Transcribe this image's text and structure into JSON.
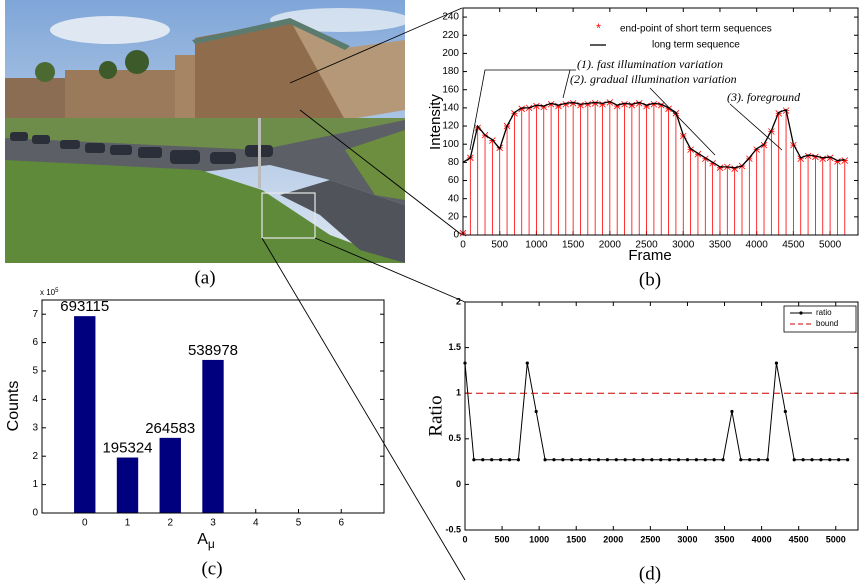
{
  "photo": {
    "caption": "(a)"
  },
  "chart_data": [
    {
      "type": "line",
      "caption": "(b)",
      "xlabel": "Frame",
      "ylabel": "Intensity",
      "x": [
        0,
        100,
        200,
        300,
        400,
        500,
        600,
        700,
        800,
        900,
        1000,
        1100,
        1200,
        1300,
        1400,
        1500,
        1600,
        1700,
        1800,
        1900,
        2000,
        2100,
        2200,
        2300,
        2400,
        2500,
        2600,
        2700,
        2800,
        2900,
        3000,
        3100,
        3200,
        3300,
        3400,
        3500,
        3600,
        3700,
        3800,
        3900,
        4000,
        4100,
        4200,
        4300,
        4400,
        4500,
        4600,
        4700,
        4800,
        4900,
        5000,
        5100,
        5200
      ],
      "series": [
        {
          "name": "end-point of short term sequences",
          "color": "#ff0000",
          "style": "stem",
          "values": [
            2,
            85,
            118,
            110,
            104,
            96,
            120,
            134,
            139,
            140,
            142,
            141,
            144,
            142,
            144,
            145,
            143,
            144,
            145,
            144,
            146,
            142,
            144,
            143,
            145,
            142,
            144,
            143,
            139,
            134,
            109,
            94,
            89,
            84,
            79,
            74,
            75,
            73,
            76,
            84,
            94,
            99,
            114,
            134,
            137,
            99,
            84,
            87,
            86,
            84,
            85,
            81,
            82
          ]
        },
        {
          "name": "long term sequence",
          "color": "#000000",
          "style": "line",
          "values": [
            80,
            85,
            120,
            110,
            105,
            95,
            120,
            135,
            140,
            140,
            143,
            142,
            145,
            143,
            145,
            146,
            144,
            145,
            146,
            145,
            147,
            143,
            145,
            144,
            146,
            143,
            145,
            144,
            140,
            135,
            110,
            95,
            90,
            85,
            80,
            75,
            75,
            74,
            76,
            85,
            95,
            100,
            115,
            135,
            138,
            100,
            85,
            88,
            87,
            85,
            86,
            82,
            83
          ]
        }
      ],
      "xlim": [
        0,
        5380
      ],
      "ylim": [
        0,
        250
      ],
      "xticks": [
        0,
        500,
        1000,
        1500,
        2000,
        2500,
        3000,
        3500,
        4000,
        4500,
        5000
      ],
      "yticks": [
        0,
        20,
        40,
        60,
        80,
        100,
        120,
        140,
        160,
        180,
        200,
        220,
        240
      ],
      "annotations": [
        "(1). fast illumination variation",
        "(2). gradual illumination variation",
        "(3). foreground"
      ]
    },
    {
      "type": "bar",
      "caption": "(c)",
      "xlabel": "A",
      "xlabel_subscript": "μ",
      "ylabel": "Counts",
      "y_multiplier": "x 10",
      "y_multiplier_exponent": "5",
      "color": "#00007f",
      "categories": [
        "0",
        "1",
        "2",
        "3",
        "4",
        "5",
        "6"
      ],
      "values": [
        693115,
        195324,
        264583,
        538978,
        null,
        null,
        null
      ],
      "ylim": [
        0,
        750000
      ],
      "yticks": [
        0,
        {
          "value": 100000,
          "label": "1"
        },
        {
          "value": 200000,
          "label": "2"
        },
        {
          "value": 300000,
          "label": "3"
        },
        {
          "value": 400000,
          "label": "4"
        },
        {
          "value": 500000,
          "label": "5"
        },
        {
          "value": 600000,
          "label": "6"
        },
        {
          "value": 700000,
          "label": "7"
        }
      ]
    },
    {
      "type": "line",
      "caption": "(d)",
      "ylabel": "Ratio",
      "x": [
        0,
        120,
        240,
        360,
        480,
        600,
        720,
        840,
        960,
        1080,
        1200,
        1320,
        1440,
        1560,
        1680,
        1800,
        1920,
        2040,
        2160,
        2280,
        2400,
        2520,
        2640,
        2760,
        2880,
        3000,
        3120,
        3240,
        3360,
        3480,
        3600,
        3720,
        3840,
        3960,
        4080,
        4200,
        4320,
        4440,
        4560,
        4680,
        4800,
        4920,
        5040,
        5160
      ],
      "series": [
        {
          "name": "ratio",
          "color": "#000000",
          "style": "dotline",
          "values": [
            1.33,
            0.27,
            0.27,
            0.27,
            0.27,
            0.27,
            0.27,
            1.33,
            0.8,
            0.27,
            0.27,
            0.27,
            0.27,
            0.27,
            0.27,
            0.27,
            0.27,
            0.27,
            0.27,
            0.27,
            0.27,
            0.27,
            0.27,
            0.27,
            0.27,
            0.27,
            0.27,
            0.27,
            0.27,
            0.27,
            0.8,
            0.27,
            0.27,
            0.27,
            0.27,
            1.33,
            0.8,
            0.27,
            0.27,
            0.27,
            0.27,
            0.27,
            0.27,
            0.27
          ]
        },
        {
          "name": "bound",
          "color": "#cc0000",
          "style": "dash",
          "x": [
            0,
            5300
          ],
          "values": [
            1,
            1
          ]
        }
      ],
      "xlim": [
        0,
        5300
      ],
      "ylim": [
        -0.5,
        2
      ],
      "xticks": [
        0,
        500,
        1000,
        1500,
        2000,
        2500,
        3000,
        3500,
        4000,
        4500,
        5000
      ],
      "yticks": [
        -0.5,
        0,
        0.5,
        1,
        1.5,
        2
      ]
    }
  ]
}
